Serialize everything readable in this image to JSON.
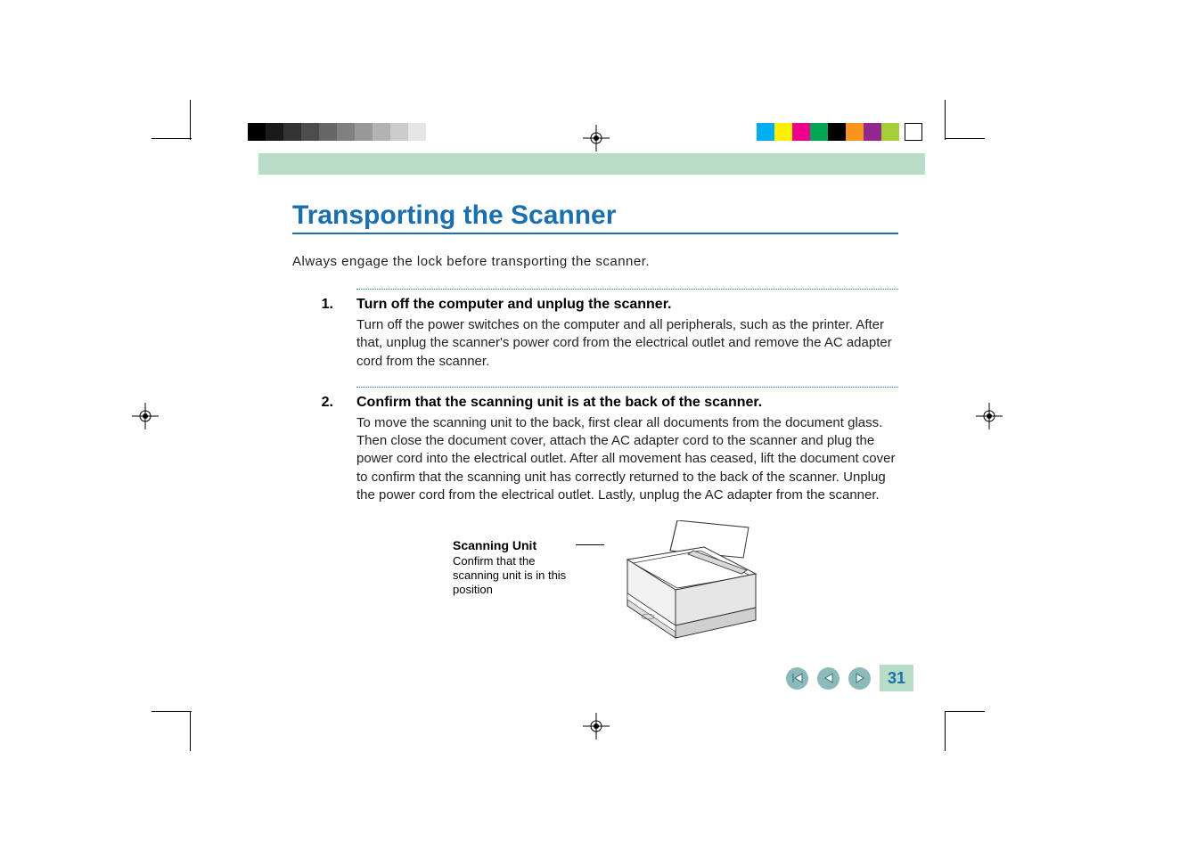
{
  "colors": {
    "accent_blue": "#1a6fb0",
    "header_green": "#b8dcc5",
    "nav_button_bg": "#8db9bb",
    "text": "#222222",
    "background": "#ffffff"
  },
  "grayscale_bar": [
    "#000000",
    "#1a1a1a",
    "#333333",
    "#4d4d4d",
    "#666666",
    "#808080",
    "#999999",
    "#b3b3b3",
    "#cccccc",
    "#e6e6e6"
  ],
  "color_bar": [
    "#00aeef",
    "#fff200",
    "#ec008c",
    "#00a651",
    "#000000",
    "#f7941d",
    "#92278f",
    "#a6ce39"
  ],
  "title": "Transporting the Scanner",
  "intro": "Always engage the lock before transporting the scanner.",
  "steps": [
    {
      "num": "1.",
      "head": "Turn off the computer and unplug the scanner.",
      "text": "Turn off the power switches on the computer and all peripherals, such as the printer. After that, unplug the scanner's power cord from the electrical outlet and remove the AC adapter cord from the scanner."
    },
    {
      "num": "2.",
      "head": "Confirm that the scanning unit is at the back of the scanner.",
      "text": "To move the scanning unit to the back, first clear all documents from the document glass. Then close the document cover, attach the AC adapter cord to the scanner and plug the power cord into the electrical outlet. After all movement has ceased, lift the document cover to confirm that the scanning unit has correctly returned to the back of the scanner. Unplug the power cord from the electrical outlet. Lastly, unplug the AC adapter from the scanner."
    }
  ],
  "callout": {
    "head": "Scanning Unit",
    "text": "Confirm that the scanning unit is in this position"
  },
  "page_number": "31"
}
